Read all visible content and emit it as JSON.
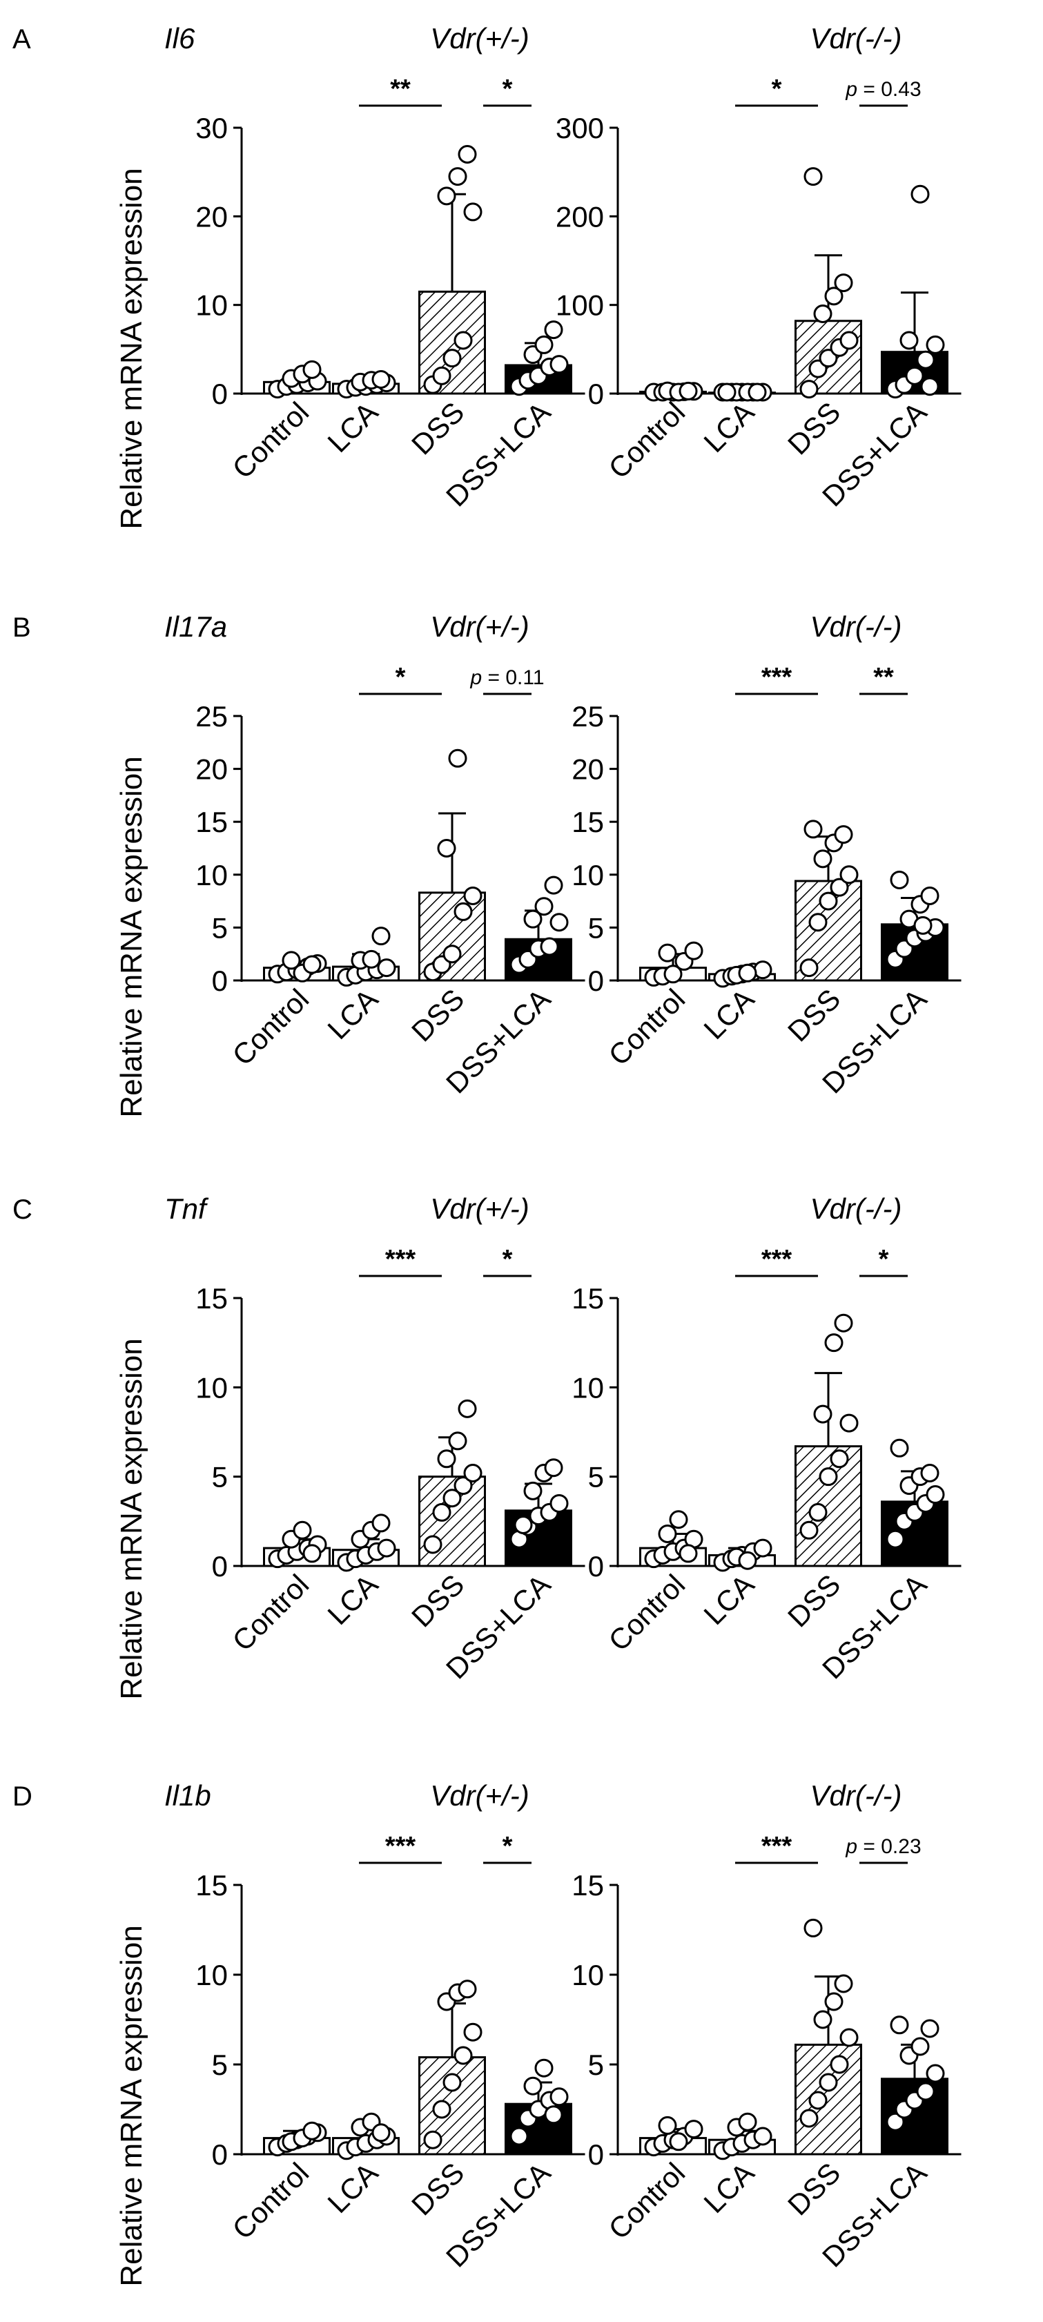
{
  "figure": {
    "ylabel": "Relative mRNA expression",
    "colors": {
      "ink": "#000000",
      "background": "#ffffff",
      "dss_plus_lca_fill": "#000000",
      "dss_fill": "hatched"
    }
  },
  "chart_data": [
    {
      "panel": "A",
      "gene": "Il6",
      "genotype": "Vdr(+/-)",
      "type": "bar",
      "categories": [
        "Control",
        "LCA",
        "DSS",
        "DSS+LCA"
      ],
      "means": [
        1.3,
        1.1,
        11.5,
        3.2
      ],
      "sd": [
        0.7,
        0.6,
        11.0,
        2.5
      ],
      "points": [
        [
          0.5,
          0.8,
          1.0,
          1.2,
          1.4,
          1.7,
          2.2,
          2.7
        ],
        [
          0.5,
          0.7,
          0.8,
          1.0,
          1.2,
          1.3,
          1.5,
          1.6
        ],
        [
          1.0,
          2.0,
          4.0,
          6.0,
          20.5,
          22.3,
          24.5,
          27.0
        ],
        [
          0.8,
          1.5,
          2.0,
          3.0,
          3.3,
          4.4,
          5.5,
          7.2
        ]
      ],
      "ylim": [
        0,
        30
      ],
      "yticks": [
        0,
        10,
        20,
        30
      ],
      "comparisons": [
        {
          "from": "LCA",
          "to": "DSS",
          "label": "**"
        },
        {
          "from": "DSS",
          "to": "DSS+LCA",
          "label": "*"
        }
      ]
    },
    {
      "panel": "A",
      "gene": "Il6",
      "genotype": "Vdr(-/-)",
      "type": "bar",
      "categories": [
        "Control",
        "LCA",
        "DSS",
        "DSS+LCA"
      ],
      "means": [
        2,
        1,
        82,
        47
      ],
      "sd": [
        1,
        0.5,
        74,
        67
      ],
      "points": [
        [
          0.5,
          1,
          1.5,
          2,
          2.5,
          3,
          1.2,
          2.8
        ],
        [
          0.3,
          0.6,
          0.8,
          1,
          1.2,
          1.4,
          0.5,
          0.9,
          1.1
        ],
        [
          5,
          28,
          40,
          52,
          60,
          90,
          110,
          125,
          245
        ],
        [
          5,
          10,
          20,
          38,
          55,
          60,
          225,
          8
        ]
      ],
      "ylim": [
        0,
        300
      ],
      "yticks": [
        0,
        100,
        200,
        300
      ],
      "comparisons": [
        {
          "from": "LCA",
          "to": "DSS",
          "label": "*"
        },
        {
          "from": "DSS",
          "to": "DSS+LCA",
          "label": "p = 0.43"
        }
      ]
    },
    {
      "panel": "B",
      "gene": "Il17a",
      "genotype": "Vdr(+/-)",
      "type": "bar",
      "categories": [
        "Control",
        "LCA",
        "DSS",
        "DSS+LCA"
      ],
      "means": [
        1.2,
        1.3,
        8.3,
        3.9
      ],
      "sd": [
        0.6,
        1.2,
        7.5,
        2.7
      ],
      "points": [
        [
          0.6,
          0.8,
          1.0,
          1.3,
          1.6,
          1.9,
          0.7,
          1.5
        ],
        [
          0.3,
          0.5,
          0.8,
          1.0,
          1.2,
          1.9,
          2.0,
          4.2
        ],
        [
          0.8,
          1.5,
          2.5,
          6.5,
          8.0,
          12.5,
          21.0
        ],
        [
          1.5,
          2.0,
          3.0,
          3.2,
          5.5,
          5.8,
          7.0,
          9.0
        ]
      ],
      "ylim": [
        0,
        25
      ],
      "yticks": [
        0,
        5,
        10,
        15,
        20,
        25
      ],
      "comparisons": [
        {
          "from": "LCA",
          "to": "DSS",
          "label": "*"
        },
        {
          "from": "DSS",
          "to": "DSS+LCA",
          "label": "p = 0.11"
        }
      ]
    },
    {
      "panel": "B",
      "gene": "Il17a",
      "genotype": "Vdr(-/-)",
      "type": "bar",
      "categories": [
        "Control",
        "LCA",
        "DSS",
        "DSS+LCA"
      ],
      "means": [
        1.2,
        0.6,
        9.4,
        5.3
      ],
      "sd": [
        1.3,
        0.4,
        4.2,
        2.5
      ],
      "points": [
        [
          0.3,
          0.4,
          0.6,
          1.8,
          2.8,
          2.6
        ],
        [
          0.2,
          0.4,
          0.6,
          0.8,
          1.0,
          0.5,
          0.7
        ],
        [
          1.2,
          5.5,
          7.5,
          8.8,
          10.0,
          11.5,
          13.0,
          13.8,
          14.3
        ],
        [
          2.0,
          3.0,
          4.0,
          4.5,
          5.0,
          5.8,
          7.2,
          8.0,
          9.5,
          5.2
        ]
      ],
      "ylim": [
        0,
        25
      ],
      "yticks": [
        0,
        5,
        10,
        15,
        20,
        25
      ],
      "comparisons": [
        {
          "from": "LCA",
          "to": "DSS",
          "label": "***"
        },
        {
          "from": "DSS",
          "to": "DSS+LCA",
          "label": "**"
        }
      ]
    },
    {
      "panel": "C",
      "gene": "Tnf",
      "genotype": "Vdr(+/-)",
      "type": "bar",
      "categories": [
        "Control",
        "LCA",
        "DSS",
        "DSS+LCA"
      ],
      "means": [
        1.0,
        0.9,
        5.0,
        3.1
      ],
      "sd": [
        0.5,
        0.6,
        2.2,
        1.5
      ],
      "points": [
        [
          0.4,
          0.6,
          0.8,
          1.0,
          1.2,
          1.5,
          2.0,
          0.7
        ],
        [
          0.2,
          0.4,
          0.6,
          0.8,
          1.0,
          1.5,
          2.0,
          2.4
        ],
        [
          1.2,
          3.0,
          3.8,
          4.5,
          5.2,
          6.0,
          7.0,
          8.8
        ],
        [
          1.5,
          2.2,
          2.8,
          3.0,
          3.5,
          4.2,
          5.2,
          5.5,
          2.3
        ]
      ],
      "ylim": [
        0,
        15
      ],
      "yticks": [
        0,
        5,
        10,
        15
      ],
      "comparisons": [
        {
          "from": "LCA",
          "to": "DSS",
          "label": "***"
        },
        {
          "from": "DSS",
          "to": "DSS+LCA",
          "label": "*"
        }
      ]
    },
    {
      "panel": "C",
      "gene": "Tnf",
      "genotype": "Vdr(-/-)",
      "type": "bar",
      "categories": [
        "Control",
        "LCA",
        "DSS",
        "DSS+LCA"
      ],
      "means": [
        1.0,
        0.6,
        6.7,
        3.6
      ],
      "sd": [
        0.8,
        0.4,
        4.1,
        1.7
      ],
      "points": [
        [
          0.4,
          0.6,
          0.8,
          1.0,
          1.5,
          1.8,
          2.6,
          0.7
        ],
        [
          0.2,
          0.4,
          0.6,
          0.8,
          1.0,
          0.5,
          0.3
        ],
        [
          2.0,
          3.0,
          5.0,
          6.0,
          8.0,
          8.5,
          12.5,
          13.6
        ],
        [
          1.5,
          2.5,
          3.0,
          3.5,
          4.0,
          4.5,
          5.0,
          5.2,
          6.6
        ]
      ],
      "ylim": [
        0,
        15
      ],
      "yticks": [
        0,
        5,
        10,
        15
      ],
      "comparisons": [
        {
          "from": "LCA",
          "to": "DSS",
          "label": "***"
        },
        {
          "from": "DSS",
          "to": "DSS+LCA",
          "label": "*"
        }
      ]
    },
    {
      "panel": "D",
      "gene": "Il1b",
      "genotype": "Vdr(+/-)",
      "type": "bar",
      "categories": [
        "Control",
        "LCA",
        "DSS",
        "DSS+LCA"
      ],
      "means": [
        0.9,
        0.9,
        5.4,
        2.8
      ],
      "sd": [
        0.4,
        0.6,
        3.0,
        1.2
      ],
      "points": [
        [
          0.4,
          0.6,
          0.8,
          1.0,
          1.2,
          0.7,
          0.9,
          1.3
        ],
        [
          0.2,
          0.4,
          0.6,
          0.8,
          1.0,
          1.5,
          1.8,
          1.2
        ],
        [
          0.8,
          2.5,
          4.0,
          5.5,
          6.8,
          8.5,
          9.0,
          9.2
        ],
        [
          1.0,
          2.0,
          2.5,
          3.0,
          3.2,
          3.8,
          4.8,
          2.2
        ]
      ],
      "ylim": [
        0,
        15
      ],
      "yticks": [
        0,
        5,
        10,
        15
      ],
      "comparisons": [
        {
          "from": "LCA",
          "to": "DSS",
          "label": "***"
        },
        {
          "from": "DSS",
          "to": "DSS+LCA",
          "label": "*"
        }
      ]
    },
    {
      "panel": "D",
      "gene": "Il1b",
      "genotype": "Vdr(-/-)",
      "type": "bar",
      "categories": [
        "Control",
        "LCA",
        "DSS",
        "DSS+LCA"
      ],
      "means": [
        0.9,
        0.8,
        6.1,
        4.2
      ],
      "sd": [
        0.5,
        0.5,
        3.8,
        1.9
      ],
      "points": [
        [
          0.4,
          0.6,
          0.8,
          1.0,
          1.4,
          1.6,
          0.7
        ],
        [
          0.2,
          0.4,
          0.6,
          0.8,
          1.0,
          1.5,
          1.8
        ],
        [
          2.0,
          3.0,
          4.0,
          5.0,
          6.5,
          7.5,
          8.5,
          9.5,
          12.6
        ],
        [
          1.8,
          2.5,
          3.0,
          3.5,
          4.5,
          5.5,
          6.0,
          7.0,
          7.2
        ]
      ],
      "ylim": [
        0,
        15
      ],
      "yticks": [
        0,
        5,
        10,
        15
      ],
      "comparisons": [
        {
          "from": "LCA",
          "to": "DSS",
          "label": "***"
        },
        {
          "from": "DSS",
          "to": "DSS+LCA",
          "label": "p = 0.23"
        }
      ]
    }
  ]
}
